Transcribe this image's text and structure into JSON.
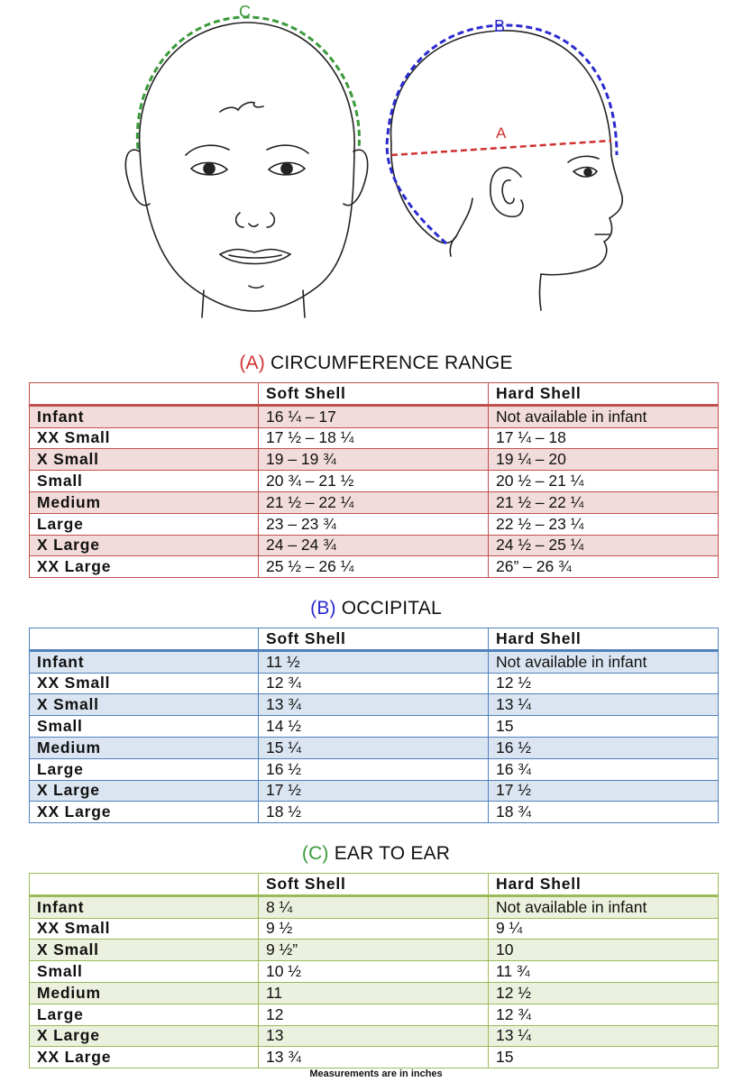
{
  "illustration": {
    "label_c": "C",
    "label_b": "B",
    "label_a": "A",
    "colors": {
      "c": "#3a9a3a",
      "b": "#2a2ad0",
      "a": "#d03030"
    }
  },
  "columns": {
    "col1": "",
    "col2": "Soft Shell",
    "col3": "Hard Shell"
  },
  "sections": [
    {
      "letter": "(A)",
      "title": "CIRCUMFERENCE RANGE",
      "letter_color": "#d03030",
      "rows": [
        {
          "size": "Infant",
          "soft": "16 ¼ – 17",
          "hard": "Not available in infant"
        },
        {
          "size": "XX Small",
          "soft": "17 ½ – 18 ¼",
          "hard": "17 ¼ – 18"
        },
        {
          "size": "X Small",
          "soft": "19 – 19 ¾",
          "hard": "19 ¼ – 20"
        },
        {
          "size": "Small",
          "soft": "20 ¾ – 21 ½",
          "hard": "20 ½ – 21 ¼"
        },
        {
          "size": "Medium",
          "soft": "21 ½ – 22 ¼",
          "hard": "21 ½ – 22 ¼"
        },
        {
          "size": "Large",
          "soft": "23 – 23 ¾",
          "hard": "22 ½ – 23 ¼"
        },
        {
          "size": "X Large",
          "soft": "24 – 24 ¾",
          "hard": "24 ½ – 25 ¼"
        },
        {
          "size": "XX Large",
          "soft": "25 ½ – 26 ¼",
          "hard": "26” – 26 ¾"
        }
      ]
    },
    {
      "letter": "(B)",
      "title": "OCCIPITAL",
      "letter_color": "#2a2ad0",
      "rows": [
        {
          "size": "Infant",
          "soft": "11 ½",
          "hard": "Not available in infant"
        },
        {
          "size": "XX Small",
          "soft": "12 ¾",
          "hard": "12 ½"
        },
        {
          "size": "X Small",
          "soft": "13 ¾",
          "hard": "13 ¼"
        },
        {
          "size": "Small",
          "soft": "14 ½",
          "hard": "15"
        },
        {
          "size": "Medium",
          "soft": "15 ¼",
          "hard": "16 ½"
        },
        {
          "size": "Large",
          "soft": "16 ½",
          "hard": "16 ¾"
        },
        {
          "size": "X Large",
          "soft": "17 ½",
          "hard": "17 ½"
        },
        {
          "size": "XX Large",
          "soft": "18 ½",
          "hard": "18 ¾"
        }
      ]
    },
    {
      "letter": "(C)",
      "title": "EAR TO EAR",
      "letter_color": "#3a9a3a",
      "rows": [
        {
          "size": "Infant",
          "soft": "8 ¼",
          "hard": "Not available in infant"
        },
        {
          "size": "XX Small",
          "soft": "9 ½",
          "hard": "9 ¼"
        },
        {
          "size": "X Small",
          "soft": "9 ½”",
          "hard": "10"
        },
        {
          "size": "Small",
          "soft": "10 ½",
          "hard": "11 ¾"
        },
        {
          "size": "Medium",
          "soft": "11",
          "hard": "12 ½"
        },
        {
          "size": "Large",
          "soft": "12",
          "hard": "12 ¾"
        },
        {
          "size": "X Large",
          "soft": "13",
          "hard": "13 ¼"
        },
        {
          "size": "XX Large",
          "soft": "13 ¾",
          "hard": "15"
        }
      ]
    }
  ],
  "footnote": "Measurements are in inches"
}
